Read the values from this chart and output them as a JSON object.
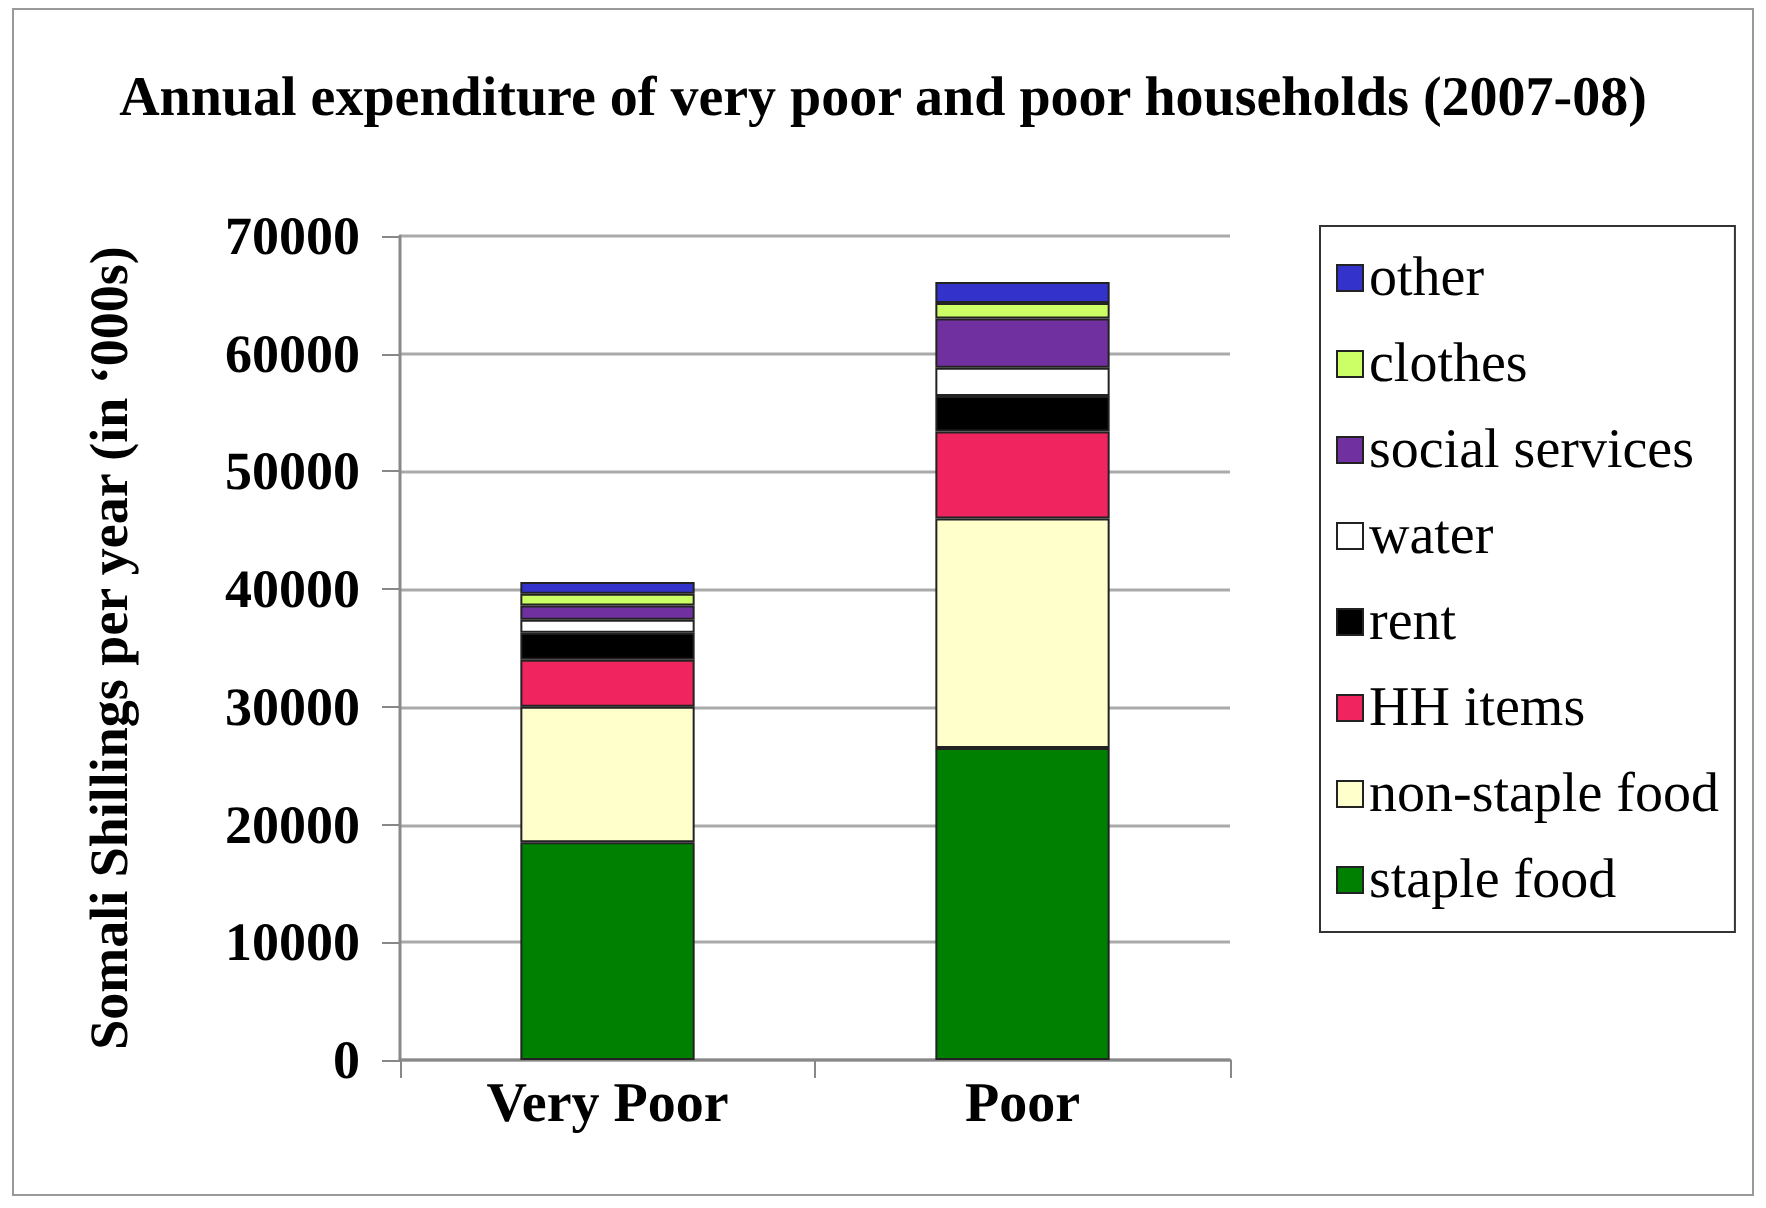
{
  "chart_data": {
    "type": "bar",
    "title": "Annual expenditure of very poor and poor households (2007-08)",
    "ylabel": "Somali Shillings per year (in ‘000s)",
    "categories": [
      "Very Poor",
      "Poor"
    ],
    "stacked": true,
    "series": [
      {
        "name": "staple food",
        "color": "#008000",
        "values": [
          18500,
          26500
        ]
      },
      {
        "name": "non-staple food",
        "color": "#ffffcc",
        "values": [
          11500,
          19500
        ]
      },
      {
        "name": "HH items",
        "color": "#f0245e",
        "values": [
          4000,
          7400
        ]
      },
      {
        "name": "rent",
        "color": "#000000",
        "values": [
          2300,
          3000
        ]
      },
      {
        "name": "water",
        "color": "#ffffff",
        "values": [
          1100,
          2400
        ]
      },
      {
        "name": "social services",
        "color": "#7030a0",
        "values": [
          1200,
          4200
        ]
      },
      {
        "name": "clothes",
        "color": "#ccff66",
        "values": [
          1000,
          1300
        ]
      },
      {
        "name": "other",
        "color": "#3333cc",
        "values": [
          1000,
          1800
        ]
      }
    ],
    "ylim": [
      0,
      70000
    ],
    "yticks": [
      0,
      10000,
      20000,
      30000,
      40000,
      50000,
      60000,
      70000
    ],
    "grid": "y",
    "legend": "right"
  }
}
